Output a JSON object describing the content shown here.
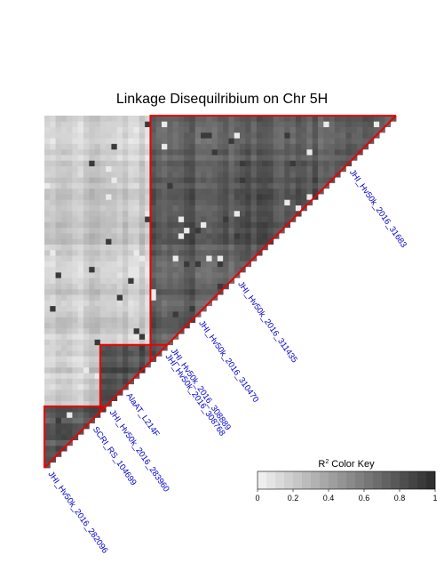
{
  "chart_data": {
    "type": "heatmap",
    "title": "Linkage Disequilribium on Chr 5H",
    "n_markers": 63,
    "seed": 11,
    "markers": [
      {
        "index": 0,
        "name": "JHI_Hv50k_2016_282096"
      },
      {
        "index": 8,
        "name": "SCRI_RS_104699"
      },
      {
        "index": 11,
        "name": "JHI_Hv50k_2016_283960"
      },
      {
        "index": 14,
        "name": "AlaAT_L214F"
      },
      {
        "index": 21,
        "name": "JHI_Hv50k_2016_308768"
      },
      {
        "index": 22,
        "name": "JHI_Hv50k_2016_308889"
      },
      {
        "index": 27,
        "name": "JHI_Hv50k_2016_310470"
      },
      {
        "index": 34,
        "name": "JHI_Hv50k_2016_311435"
      },
      {
        "index": 54,
        "name": "JHI_Hv50k_2016_31683"
      }
    ],
    "ld_blocks": [
      {
        "start": 0,
        "end": 10,
        "r2": 0.8
      },
      {
        "start": 10,
        "end": 21,
        "r2": 0.85
      },
      {
        "start": 19,
        "end": 62,
        "r2": 0.78
      }
    ],
    "background_r2": 0.18,
    "highlight_color": "#ee0000",
    "color_key": {
      "title": "R",
      "superscript": "2",
      "title_suffix": " Color Key",
      "min": 0,
      "max": 1,
      "ticks": [
        "0",
        "0.2",
        "0.4",
        "0.6",
        "0.8",
        "1"
      ],
      "low_color": "#eeeeee",
      "high_color": "#333333"
    }
  }
}
